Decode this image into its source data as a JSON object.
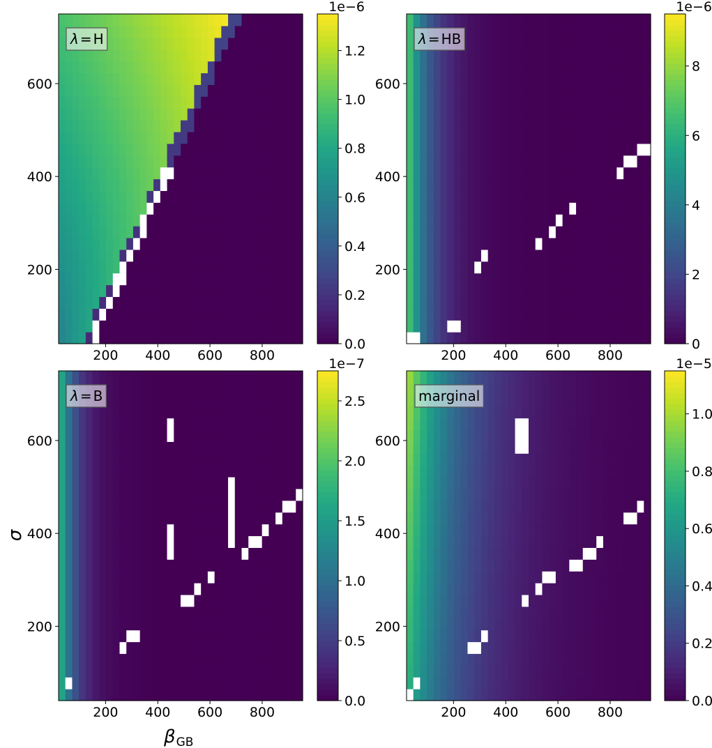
{
  "figure": {
    "ylabel": "σ",
    "xlabel_main": "β",
    "xlabel_sub": "GB"
  },
  "colormap": "viridis",
  "chart_data": [
    {
      "type": "heatmap",
      "label": "λ = H",
      "label_parts": [
        "λ",
        "=",
        "H"
      ],
      "xlim": [
        20,
        955
      ],
      "ylim": [
        40,
        750
      ],
      "xticks": [
        200,
        400,
        600,
        800
      ],
      "yticks": [
        200,
        400,
        600
      ],
      "show_xticks": true,
      "show_yticks": true,
      "colorbar": {
        "range": [
          0,
          1.35e-06
        ],
        "ticks": [
          0,
          0.2,
          0.4,
          0.6,
          0.8,
          1.0,
          1.2
        ],
        "tick_labels": [
          "0.0",
          "0.2",
          "0.4",
          "0.6",
          "0.8",
          "1.0",
          "1.2"
        ],
        "offset_text": "1e−6",
        "scale": 1e-06
      },
      "pattern": {
        "kind": "H"
      }
    },
    {
      "type": "heatmap",
      "label": "λ = HB",
      "label_parts": [
        "λ",
        "=",
        "HB"
      ],
      "xlim": [
        20,
        955
      ],
      "ylim": [
        40,
        750
      ],
      "xticks": [
        200,
        400,
        600,
        800
      ],
      "yticks": [
        200,
        400,
        600
      ],
      "show_xticks": true,
      "show_yticks": true,
      "colorbar": {
        "range": [
          0,
          9.5e-06
        ],
        "ticks": [
          0,
          2,
          4,
          6,
          8
        ],
        "tick_labels": [
          "0",
          "2",
          "4",
          "6",
          "8"
        ],
        "offset_text": "1e−6",
        "scale": 1e-06
      },
      "pattern": {
        "kind": "decay",
        "decay": 85,
        "halfwidth": 30,
        "holes": [
          [
            20,
            40,
            20
          ],
          [
            165,
            60,
            30
          ],
          [
            270,
            200,
            30
          ],
          [
            480,
            230,
            50
          ],
          [
            600,
            300,
            50
          ],
          [
            800,
            390,
            80
          ]
        ]
      }
    },
    {
      "type": "heatmap",
      "label": "λ = B",
      "label_parts": [
        "λ",
        "=",
        "B"
      ],
      "xlim": [
        20,
        955
      ],
      "ylim": [
        40,
        750
      ],
      "xticks": [
        200,
        400,
        600,
        800
      ],
      "yticks": [
        200,
        400,
        600
      ],
      "show_xticks": true,
      "show_yticks": true,
      "colorbar": {
        "range": [
          0,
          2.75e-07
        ],
        "ticks": [
          0,
          0.5,
          1.0,
          1.5,
          2.0,
          2.5
        ],
        "tick_labels": [
          "0.0",
          "0.5",
          "1.0",
          "1.5",
          "2.0",
          "2.5"
        ],
        "offset_text": "1e−7",
        "scale": 1e-07
      },
      "pattern": {
        "kind": "decay",
        "decay": 60,
        "halfwidth": 28,
        "holes": [
          [
            20,
            60,
            20
          ],
          [
            250,
            150,
            40
          ],
          [
            500,
            250,
            60
          ],
          [
            700,
            340,
            60
          ],
          [
            850,
            430,
            90
          ]
        ],
        "extra_holes": [
          [
            440,
            460,
            600,
            640
          ],
          [
            440,
            460,
            350,
            410
          ],
          [
            660,
            700,
            360,
            510
          ]
        ]
      }
    },
    {
      "type": "heatmap",
      "label": "marginal",
      "label_parts": [
        "marginal"
      ],
      "xlim": [
        20,
        955
      ],
      "ylim": [
        40,
        750
      ],
      "xticks": [
        200,
        400,
        600,
        800
      ],
      "yticks": [
        200,
        400,
        600
      ],
      "show_xticks": true,
      "show_yticks": true,
      "colorbar": {
        "range": [
          0,
          1.15e-05
        ],
        "ticks": [
          0,
          0.2,
          0.4,
          0.6,
          0.8,
          1.0
        ],
        "tick_labels": [
          "0.0",
          "0.2",
          "0.4",
          "0.6",
          "0.8",
          "1.0"
        ],
        "offset_text": "1e−5",
        "scale": 1e-05
      },
      "pattern": {
        "kind": "marginal",
        "decay": 200,
        "halfwidth": 45,
        "holes": [
          [
            20,
            50,
            30
          ],
          [
            250,
            140,
            50
          ],
          [
            450,
            240,
            70
          ],
          [
            650,
            320,
            70
          ],
          [
            850,
            420,
            100
          ]
        ],
        "extra_holes": [
          [
            440,
            480,
            560,
            640
          ]
        ]
      }
    }
  ]
}
